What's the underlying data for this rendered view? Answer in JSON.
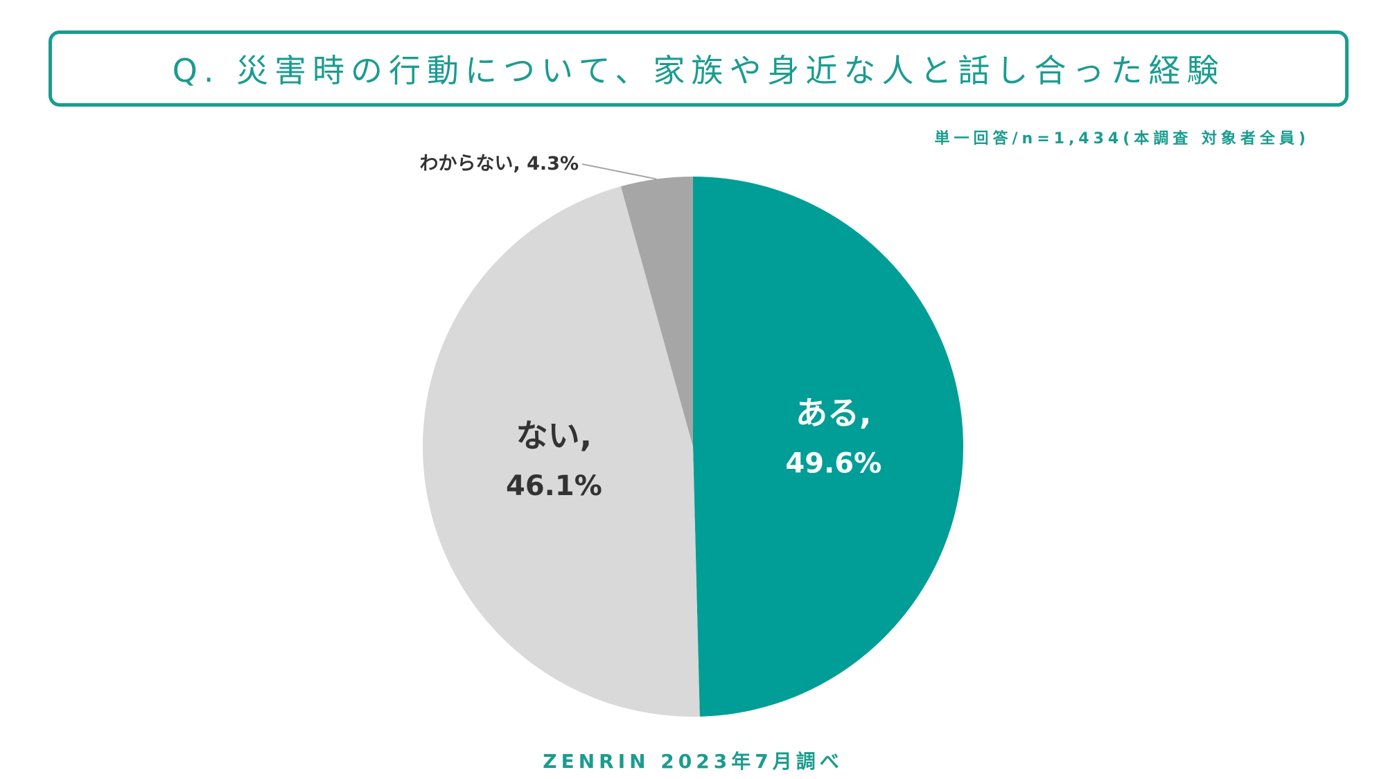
{
  "title": "Q. 災害時の行動について、家族や身近な人と話し合った経験",
  "note": "単一回答/n=1,434(本調査 対象者全員)",
  "source": "ZENRIN 2023年7月調べ",
  "colors": {
    "accent": "#1a9c8f",
    "slice_aru": "#009e96",
    "slice_nai": "#d9d9d9",
    "slice_wakaranai": "#a6a6a6"
  },
  "chart_data": {
    "type": "pie",
    "start": "12 o'clock, clockwise",
    "slices": [
      {
        "label": "ある",
        "value": 49.6,
        "value_text": "49.6%",
        "color": "#009e96",
        "text_color": "#ffffff"
      },
      {
        "label": "ない",
        "value": 46.1,
        "value_text": "46.1%",
        "color": "#d9d9d9",
        "text_color": "#333333"
      },
      {
        "label": "わからない",
        "value": 4.3,
        "value_text": "4.3%",
        "color": "#a6a6a6",
        "text_color": "#333333"
      }
    ]
  }
}
